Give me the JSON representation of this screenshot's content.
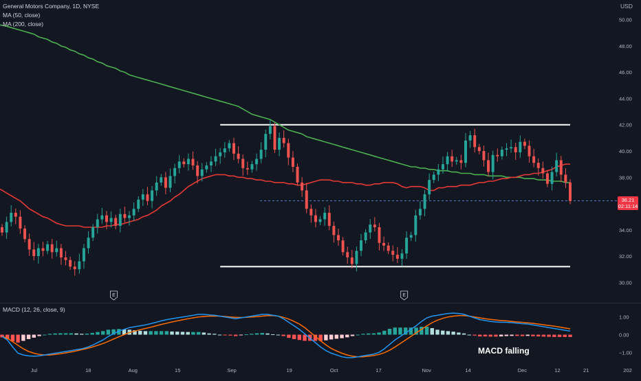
{
  "header": {
    "symbol_line": "General Motors Company, 1D, NYSE",
    "ma50_label": "MA (50, close)",
    "ma200_label": "MA (200, close)",
    "macd_label": "MACD (12, 26, close, 9)",
    "currency": "USD"
  },
  "price_badge": {
    "price": "36.21",
    "countdown": "02:11:14",
    "color": "#f23645"
  },
  "annotation": {
    "text": "MACD falling"
  },
  "earnings_markers": [
    {
      "date": "Jul 26",
      "letter": "E"
    },
    {
      "date": "Oct 25",
      "letter": "E"
    }
  ],
  "colors": {
    "background": "#131722",
    "up_candle": "#26a69a",
    "down_candle": "#ef5350",
    "ma50": "#e53935",
    "ma200": "#4caf50",
    "macd_line": "#2196f3",
    "signal_line": "#ff6d00",
    "hist_up_strong": "#26a69a",
    "hist_up_weak": "#b2dfdb",
    "hist_down_strong": "#ff5252",
    "hist_down_weak": "#ffcdd2",
    "range_lines": "#ffffff"
  },
  "chart_data": [
    {
      "type": "candlestick",
      "title": "General Motors Company, 1D, NYSE",
      "ylabel": "USD",
      "ylim": [
        28.5,
        51.5
      ],
      "y_ticks": [
        30,
        32,
        34,
        36,
        38,
        40,
        42,
        44,
        46,
        48,
        50
      ],
      "y_tick_labels": [
        "30.00",
        "32.00",
        "34.00",
        "36.00",
        "38.00",
        "40.00",
        "42.00",
        "44.00",
        "46.00",
        "48.00",
        "50.00"
      ],
      "x_tick_labels": [
        {
          "date": "2022-07-01",
          "label": "Jul"
        },
        {
          "date": "2022-07-18",
          "label": "18"
        },
        {
          "date": "2022-08-01",
          "label": "Aug"
        },
        {
          "date": "2022-08-15",
          "label": "15"
        },
        {
          "date": "2022-09-01",
          "label": "Sep"
        },
        {
          "date": "2022-09-19",
          "label": "19"
        },
        {
          "date": "2022-10-03",
          "label": "Oct"
        },
        {
          "date": "2022-10-17",
          "label": "17"
        },
        {
          "date": "2022-11-01",
          "label": "Nov"
        },
        {
          "date": "2022-11-14",
          "label": "14"
        },
        {
          "date": "2022-12-01",
          "label": "Dec"
        },
        {
          "date": "2022-12-12",
          "label": "12"
        },
        {
          "date": "2022-12-21",
          "label": "21"
        },
        {
          "date": "2023-01-03",
          "label": "202"
        }
      ],
      "dates": [
        "2022-06-21",
        "2022-06-22",
        "2022-06-23",
        "2022-06-24",
        "2022-06-27",
        "2022-06-28",
        "2022-06-29",
        "2022-06-30",
        "2022-07-01",
        "2022-07-05",
        "2022-07-06",
        "2022-07-07",
        "2022-07-08",
        "2022-07-11",
        "2022-07-12",
        "2022-07-13",
        "2022-07-14",
        "2022-07-15",
        "2022-07-18",
        "2022-07-19",
        "2022-07-20",
        "2022-07-21",
        "2022-07-22",
        "2022-07-25",
        "2022-07-26",
        "2022-07-27",
        "2022-07-28",
        "2022-07-29",
        "2022-08-01",
        "2022-08-02",
        "2022-08-03",
        "2022-08-04",
        "2022-08-05",
        "2022-08-08",
        "2022-08-09",
        "2022-08-10",
        "2022-08-11",
        "2022-08-12",
        "2022-08-15",
        "2022-08-16",
        "2022-08-17",
        "2022-08-18",
        "2022-08-19",
        "2022-08-22",
        "2022-08-23",
        "2022-08-24",
        "2022-08-25",
        "2022-08-26",
        "2022-08-29",
        "2022-08-30",
        "2022-08-31",
        "2022-09-01",
        "2022-09-02",
        "2022-09-06",
        "2022-09-07",
        "2022-09-08",
        "2022-09-09",
        "2022-09-12",
        "2022-09-13",
        "2022-09-14",
        "2022-09-15",
        "2022-09-16",
        "2022-09-19",
        "2022-09-20",
        "2022-09-21",
        "2022-09-22",
        "2022-09-23",
        "2022-09-26",
        "2022-09-27",
        "2022-09-28",
        "2022-09-29",
        "2022-09-30",
        "2022-10-03",
        "2022-10-04",
        "2022-10-05",
        "2022-10-06",
        "2022-10-07",
        "2022-10-10",
        "2022-10-11",
        "2022-10-12",
        "2022-10-13",
        "2022-10-14",
        "2022-10-17",
        "2022-10-18",
        "2022-10-19",
        "2022-10-20",
        "2022-10-21",
        "2022-10-24",
        "2022-10-25",
        "2022-10-26",
        "2022-10-27",
        "2022-10-28",
        "2022-10-31",
        "2022-11-01",
        "2022-11-02",
        "2022-11-03",
        "2022-11-04",
        "2022-11-07",
        "2022-11-08",
        "2022-11-09",
        "2022-11-10",
        "2022-11-11",
        "2022-11-14",
        "2022-11-15",
        "2022-11-16",
        "2022-11-17",
        "2022-11-18",
        "2022-11-21",
        "2022-11-22",
        "2022-11-23",
        "2022-11-25",
        "2022-11-28",
        "2022-11-29",
        "2022-11-30",
        "2022-12-01",
        "2022-12-02",
        "2022-12-05",
        "2022-12-06",
        "2022-12-07",
        "2022-12-08",
        "2022-12-09",
        "2022-12-12",
        "2022-12-13",
        "2022-12-14",
        "2022-12-15",
        "2022-12-16"
      ],
      "close": [
        33.8,
        34.6,
        35.3,
        35.0,
        34.1,
        33.3,
        32.5,
        32.0,
        32.6,
        32.4,
        32.9,
        32.3,
        32.6,
        31.9,
        31.7,
        31.2,
        31.0,
        31.6,
        32.6,
        33.4,
        34.2,
        34.8,
        35.1,
        34.6,
        34.9,
        34.3,
        35.2,
        34.9,
        35.1,
        35.6,
        36.3,
        36.7,
        36.2,
        37.0,
        37.6,
        38.0,
        37.2,
        38.1,
        38.7,
        39.2,
        39.0,
        39.4,
        38.9,
        38.1,
        38.6,
        38.9,
        39.2,
        39.6,
        39.9,
        40.2,
        40.6,
        39.8,
        39.4,
        38.7,
        38.6,
        39.0,
        39.4,
        40.1,
        41.3,
        41.9,
        40.1,
        41.0,
        40.6,
        39.5,
        38.8,
        37.6,
        37.0,
        35.6,
        35.1,
        34.6,
        34.8,
        35.3,
        34.3,
        33.6,
        33.2,
        32.3,
        31.9,
        31.4,
        32.4,
        33.2,
        33.8,
        34.4,
        34.2,
        33.0,
        32.8,
        32.4,
        32.1,
        31.8,
        32.2,
        33.4,
        33.6,
        35.1,
        35.6,
        36.7,
        37.8,
        38.2,
        38.6,
        39.0,
        39.6,
        39.2,
        39.3,
        39.1,
        40.8,
        41.2,
        40.3,
        40.0,
        39.3,
        38.4,
        39.7,
        39.6,
        40.1,
        40.2,
        40.3,
        39.9,
        40.7,
        40.4,
        39.6,
        39.1,
        38.7,
        38.3,
        37.5,
        38.4,
        39.3,
        38.2,
        37.6,
        36.2
      ],
      "ma50": [
        37.1,
        36.8,
        36.6,
        36.4,
        36.2,
        35.9,
        35.6,
        35.4,
        35.2,
        35.0,
        34.9,
        34.7,
        34.5,
        34.4,
        34.3,
        34.3,
        34.3,
        34.3,
        34.2,
        34.2,
        34.2,
        34.2,
        34.2,
        34.3,
        34.3,
        34.4,
        34.4,
        34.5,
        34.6,
        34.7,
        34.8,
        35.0,
        35.1,
        35.3,
        35.5,
        35.8,
        36.0,
        36.2,
        36.5,
        36.7,
        37.0,
        37.3,
        37.5,
        37.7,
        37.9,
        38.0,
        38.1,
        38.2,
        38.2,
        38.2,
        38.1,
        38.1,
        38.0,
        38.0,
        37.9,
        37.9,
        37.8,
        37.8,
        37.7,
        37.7,
        37.6,
        37.6,
        37.6,
        37.5,
        37.5,
        37.4,
        37.4,
        37.5,
        37.6,
        37.7,
        37.8,
        37.8,
        37.8,
        37.7,
        37.7,
        37.6,
        37.6,
        37.6,
        37.5,
        37.5,
        37.4,
        37.4,
        37.5,
        37.5,
        37.6,
        37.6,
        37.6,
        37.5,
        37.3,
        37.2,
        37.3,
        37.3,
        37.3,
        37.2,
        37.0,
        37.0,
        37.2,
        37.2,
        37.3,
        37.3,
        37.3,
        37.4,
        37.4,
        37.4,
        37.5,
        37.6,
        37.6,
        37.7,
        37.7,
        37.8,
        37.9,
        37.9,
        38.0,
        38.0,
        38.1,
        38.2,
        38.2,
        38.3,
        38.3,
        38.4,
        38.5,
        38.6,
        38.8,
        38.9,
        39.0,
        39.0
      ],
      "ma200": [
        49.6,
        49.5,
        49.4,
        49.3,
        49.2,
        49.1,
        49.0,
        48.9,
        48.7,
        48.6,
        48.5,
        48.3,
        48.2,
        48.0,
        47.9,
        47.7,
        47.6,
        47.4,
        47.3,
        47.1,
        47.0,
        46.8,
        46.7,
        46.5,
        46.4,
        46.3,
        46.1,
        46.0,
        45.8,
        45.7,
        45.6,
        45.5,
        45.4,
        45.3,
        45.2,
        45.1,
        45.0,
        44.9,
        44.8,
        44.7,
        44.6,
        44.5,
        44.4,
        44.3,
        44.2,
        44.1,
        44.0,
        43.9,
        43.8,
        43.7,
        43.6,
        43.5,
        43.4,
        43.2,
        43.0,
        42.8,
        42.7,
        42.6,
        42.5,
        42.4,
        42.2,
        42.0,
        41.8,
        41.6,
        41.5,
        41.4,
        41.3,
        41.1,
        41.0,
        40.9,
        40.8,
        40.7,
        40.6,
        40.5,
        40.4,
        40.3,
        40.2,
        40.1,
        40.0,
        39.9,
        39.8,
        39.7,
        39.6,
        39.5,
        39.4,
        39.3,
        39.2,
        39.1,
        39.0,
        38.9,
        38.8,
        38.8,
        38.7,
        38.7,
        38.6,
        38.6,
        38.5,
        38.5,
        38.5,
        38.4,
        38.4,
        38.3,
        38.3,
        38.3,
        38.2,
        38.2,
        38.2,
        38.1,
        38.1,
        38.1,
        38.1,
        38.0,
        38.0,
        38.0,
        38.0,
        37.9,
        37.9,
        37.9,
        37.8,
        37.8,
        37.8,
        37.7,
        37.7,
        37.7,
        37.6,
        37.6
      ],
      "range_lines": [
        {
          "label": "",
          "value": 42.0
        },
        {
          "label": "",
          "value": 31.2
        }
      ],
      "last_price": 36.21
    },
    {
      "type": "macd",
      "title": "MACD (12, 26, close, 9)",
      "ylim": [
        -1.65,
        1.65
      ],
      "y_ticks": [
        -1.0,
        0.0,
        1.0
      ],
      "y_tick_labels": [
        "−1.00",
        "0.00",
        "1.00"
      ],
      "annotation": "MACD falling",
      "macd": [
        -0.1,
        -0.3,
        -0.7,
        -1.05,
        -1.15,
        -1.2,
        -1.22,
        -1.2,
        -1.15,
        -1.1,
        -1.05,
        -1.0,
        -0.95,
        -0.9,
        -0.85,
        -0.8,
        -0.72,
        -0.6,
        -0.45,
        -0.3,
        -0.1,
        0.05,
        0.2,
        0.3,
        0.4,
        0.45,
        0.5,
        0.55,
        0.62,
        0.7,
        0.78,
        0.85,
        0.9,
        0.95,
        1.0,
        1.05,
        1.1,
        1.15,
        1.15,
        1.12,
        1.1,
        1.05,
        1.0,
        0.95,
        0.9,
        0.95,
        1.0,
        1.05,
        1.1,
        1.15,
        1.15,
        1.1,
        1.05,
        0.9,
        0.7,
        0.5,
        0.3,
        0.05,
        -0.2,
        -0.45,
        -0.7,
        -0.9,
        -1.05,
        -1.15,
        -1.25,
        -1.3,
        -1.3,
        -1.25,
        -1.2,
        -1.15,
        -1.1,
        -1.0,
        -0.8,
        -0.55,
        -0.3,
        -0.1,
        0.1,
        0.3,
        0.5,
        0.75,
        0.95,
        1.05,
        1.1,
        1.15,
        1.2,
        1.22,
        1.2,
        1.15,
        1.05,
        0.95,
        0.85,
        0.8,
        0.75,
        0.72,
        0.7,
        0.7,
        0.68,
        0.65,
        0.62,
        0.6,
        0.55,
        0.5,
        0.45,
        0.4,
        0.35,
        0.3,
        0.25,
        0.2
      ],
      "signal": [
        -0.1,
        -0.2,
        -0.4,
        -0.6,
        -0.8,
        -0.95,
        -1.05,
        -1.12,
        -1.15,
        -1.15,
        -1.12,
        -1.08,
        -1.03,
        -0.98,
        -0.92,
        -0.85,
        -0.78,
        -0.7,
        -0.6,
        -0.5,
        -0.38,
        -0.25,
        -0.12,
        0.0,
        0.12,
        0.2,
        0.28,
        0.35,
        0.42,
        0.5,
        0.58,
        0.65,
        0.72,
        0.78,
        0.84,
        0.9,
        0.95,
        1.0,
        1.03,
        1.05,
        1.05,
        1.05,
        1.03,
        1.0,
        0.98,
        0.97,
        0.98,
        1.0,
        1.02,
        1.05,
        1.08,
        1.08,
        1.05,
        0.98,
        0.88,
        0.75,
        0.6,
        0.4,
        0.15,
        -0.1,
        -0.35,
        -0.58,
        -0.78,
        -0.92,
        -1.05,
        -1.15,
        -1.22,
        -1.25,
        -1.25,
        -1.22,
        -1.18,
        -1.12,
        -1.02,
        -0.88,
        -0.7,
        -0.5,
        -0.3,
        -0.1,
        0.1,
        0.3,
        0.5,
        0.68,
        0.82,
        0.92,
        1.0,
        1.05,
        1.08,
        1.08,
        1.05,
        1.0,
        0.95,
        0.9,
        0.86,
        0.83,
        0.8,
        0.78,
        0.75,
        0.72,
        0.7,
        0.67,
        0.64,
        0.6,
        0.56,
        0.52,
        0.48,
        0.43,
        0.38,
        0.33
      ],
      "histogram": [
        -0.15,
        -0.25,
        -0.38,
        -0.45,
        -0.35,
        -0.25,
        -0.17,
        -0.08,
        0.0,
        0.05,
        0.07,
        0.08,
        0.08,
        0.08,
        0.07,
        0.05,
        0.06,
        0.1,
        0.15,
        0.2,
        0.28,
        0.3,
        0.32,
        0.3,
        0.28,
        0.25,
        0.22,
        0.2,
        0.2,
        0.2,
        0.2,
        0.2,
        0.18,
        0.17,
        0.16,
        0.15,
        0.15,
        0.15,
        0.12,
        0.07,
        0.05,
        0.0,
        -0.03,
        -0.05,
        -0.08,
        -0.02,
        0.02,
        0.05,
        0.08,
        0.1,
        0.07,
        0.02,
        0.0,
        -0.08,
        -0.18,
        -0.25,
        -0.3,
        -0.35,
        -0.35,
        -0.35,
        -0.35,
        -0.32,
        -0.27,
        -0.23,
        -0.2,
        -0.15,
        -0.08,
        0.0,
        0.05,
        0.07,
        0.08,
        0.12,
        0.22,
        0.33,
        0.4,
        0.4,
        0.4,
        0.4,
        0.4,
        0.45,
        0.45,
        0.37,
        0.28,
        0.23,
        0.2,
        0.17,
        0.12,
        0.07,
        0.0,
        -0.05,
        -0.1,
        -0.1,
        -0.11,
        -0.11,
        -0.1,
        -0.08,
        -0.07,
        -0.07,
        -0.08,
        -0.07,
        -0.09,
        -0.1,
        -0.11,
        -0.12,
        -0.13,
        -0.13,
        -0.13,
        -0.13
      ]
    }
  ]
}
